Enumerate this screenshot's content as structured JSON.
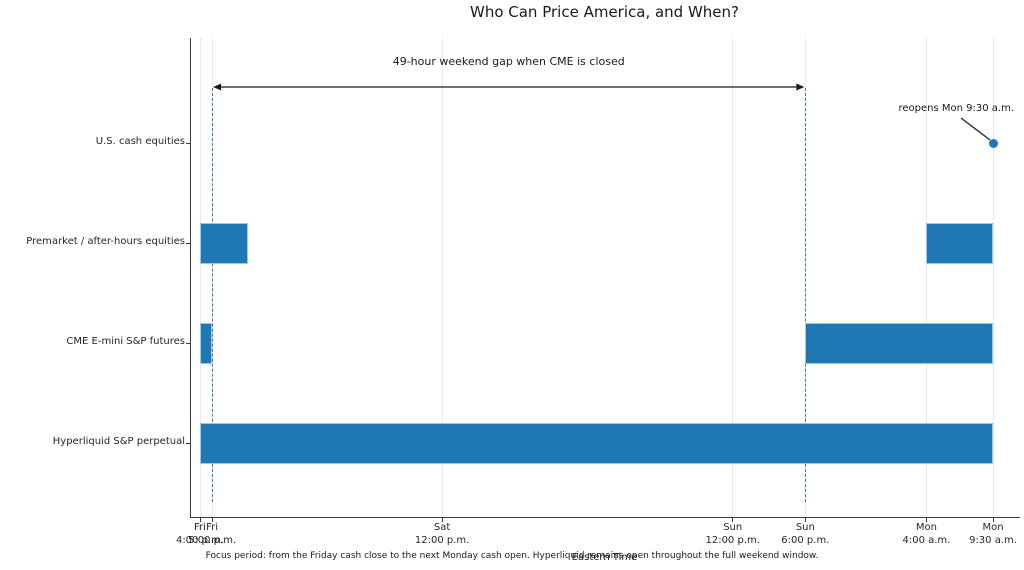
{
  "title": "Who Can Price America, and When?",
  "caption": "Focus period: from the Friday cash close to the next Monday cash open. Hyperliquid remains open throughout the full weekend window.",
  "chart_data": {
    "type": "bar",
    "subtype": "horizontal-timeline-gantt",
    "title": "Who Can Price America, and When?",
    "xlabel": "Eastern Time",
    "x_unit": "hours since Friday 4:00 p.m. ET",
    "xlim_hours": [
      -0.83,
      67.7
    ],
    "grid": "vertical-at-ticks",
    "time_axis": {
      "label": "Eastern Time",
      "ticks": [
        {
          "h": 0,
          "day": "Fri",
          "time": "4:00 p.m."
        },
        {
          "h": 1,
          "day": "Fri",
          "time": "5:00 p.m."
        },
        {
          "h": 20,
          "day": "Sat",
          "time": "12:00 p.m."
        },
        {
          "h": 44,
          "day": "Sun",
          "time": "12:00 p.m."
        },
        {
          "h": 50,
          "day": "Sun",
          "time": "6:00 p.m."
        },
        {
          "h": 60,
          "day": "Mon",
          "time": "4:00 a.m."
        },
        {
          "h": 65.5,
          "day": "Mon",
          "time": "9:30 a.m."
        }
      ]
    },
    "rows": [
      {
        "label": "U.S. cash equities",
        "bars": [],
        "marker": {
          "h": 65.5,
          "annotation": "reopens Mon 9:30 a.m."
        }
      },
      {
        "label": "Premarket / after-hours equities",
        "bars": [
          [
            0,
            4
          ],
          [
            60,
            65.5
          ]
        ]
      },
      {
        "label": "CME E-mini S&P futures",
        "bars": [
          [
            0,
            1
          ],
          [
            50,
            65.5
          ]
        ]
      },
      {
        "label": "Hyperliquid S&P perpetual",
        "bars": [
          [
            0,
            65.5
          ]
        ]
      }
    ],
    "gap_annotation": {
      "text": "49-hour weekend gap when CME is closed",
      "from_h": 1,
      "to_h": 50
    },
    "dashed_markers_h": [
      1,
      50
    ],
    "colors": {
      "bar": "#1f77b4",
      "bar_edge": "#9ec6e0",
      "dashed_line": "#2f7fb8",
      "gridline": "#e8e8e8",
      "spine": "#3a3a3a",
      "arrow": "#1a1a1a",
      "text": "#262626"
    }
  }
}
